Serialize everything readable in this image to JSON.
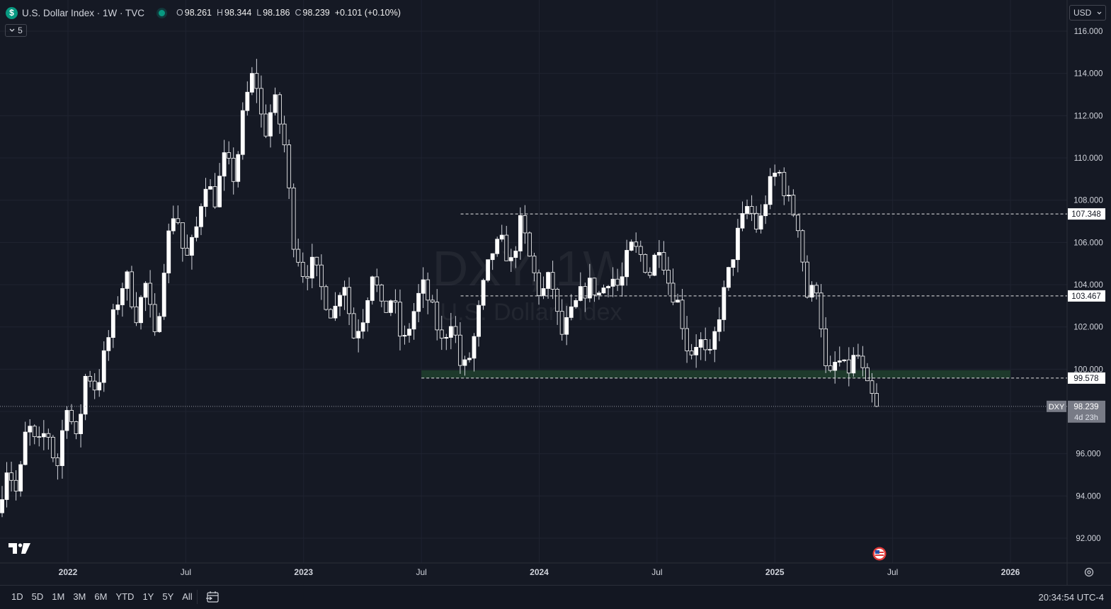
{
  "header": {
    "symbol_icon": "$",
    "title": "U.S. Dollar Index · 1W · TVC",
    "ohlc": [
      {
        "key": "O",
        "value": "98.261"
      },
      {
        "key": "H",
        "value": "98.344"
      },
      {
        "key": "L",
        "value": "98.186"
      },
      {
        "key": "C",
        "value": "98.239"
      }
    ],
    "change": "+0.101 (+0.10%)",
    "indicator_count": "5"
  },
  "currency": "USD",
  "watermark": {
    "symbol": "DXY, 1W",
    "name": "U.S. Dollar Index"
  },
  "range_buttons": [
    "1D",
    "5D",
    "1M",
    "3M",
    "6M",
    "YTD",
    "1Y",
    "5Y",
    "All"
  ],
  "clock": "20:34:54 UTC-4",
  "colors": {
    "background": "#151924",
    "candle": "#ffffff",
    "zone": "#1e3a2c",
    "grid": "#1f2330"
  },
  "chart_data": {
    "type": "candlestick",
    "symbol": "DXY",
    "interval": "1W",
    "ylim": [
      91.2,
      116.6
    ],
    "y_ticks": [
      "116.000",
      "114.000",
      "112.000",
      "110.000",
      "108.000",
      "106.000",
      "104.000",
      "102.000",
      "100.000",
      "98.000",
      "96.000",
      "94.000",
      "92.000"
    ],
    "x_ticks": [
      "2022",
      "Jul",
      "2023",
      "Jul",
      "2024",
      "Jul",
      "2025",
      "Jul",
      "2026"
    ],
    "last_price": {
      "label": "DXY",
      "value": "98.239",
      "countdown": "4d 23h"
    },
    "levels": [
      {
        "value": 107.348,
        "label": "107.348",
        "from": "2023-09"
      },
      {
        "value": 103.467,
        "label": "103.467",
        "from": "2023-09"
      },
      {
        "value": 99.578,
        "label": "99.578",
        "from": "2023-07"
      }
    ],
    "zone": {
      "from": "2023-07",
      "to": "2026-01",
      "low": 99.58,
      "high": 99.95
    },
    "path": [
      93.2,
      95.5,
      94.0,
      97.5,
      96.2,
      97.2,
      95.2,
      98.5,
      96.5,
      100,
      99,
      101,
      103,
      104.5,
      102.5,
      104,
      101.2,
      105.6,
      107.8,
      105,
      106.3,
      109,
      108,
      110,
      109,
      112.5,
      114.2,
      111,
      112.8,
      110.8,
      106,
      104.5,
      105,
      103.5,
      102.5,
      104.5,
      101.5,
      102.5,
      104.8,
      102.5,
      103.5,
      101,
      102.5,
      104,
      102.8,
      101.2,
      102.5,
      99.8,
      100.8,
      103.5,
      105.5,
      106,
      105,
      107,
      105,
      103.4,
      104.5,
      101.5,
      102.5,
      103.5,
      104,
      103.5,
      104.5,
      103.8,
      105.8,
      105.5,
      104.5,
      106,
      104,
      103,
      100.6,
      101.5,
      100.2,
      102.5,
      104.5,
      106.5,
      107.8,
      106.5,
      108.5,
      109.5,
      108,
      107,
      103.4,
      104,
      99.2,
      100.5,
      99.8,
      100.8,
      99.1,
      98.239
    ]
  }
}
